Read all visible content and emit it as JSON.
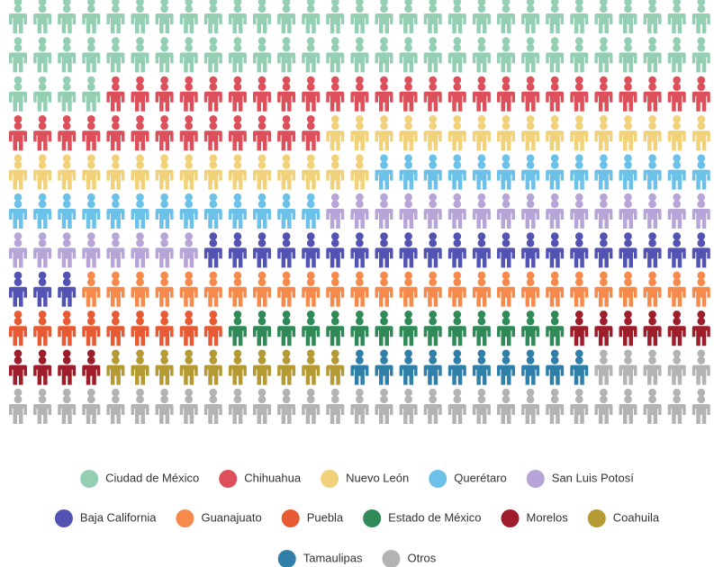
{
  "chart_data": {
    "type": "pictogram",
    "series": [
      {
        "name": "Ciudad de México",
        "color": "#94cfb3",
        "values": [
          62
        ]
      },
      {
        "name": "Chihuahua",
        "color": "#dd4f5a",
        "values": [
          38
        ]
      },
      {
        "name": "Nuevo León",
        "color": "#f1d27a",
        "values": [
          31
        ]
      },
      {
        "name": "Querétaro",
        "color": "#6cc1e8",
        "values": [
          27
        ]
      },
      {
        "name": "San Luis Potosí",
        "color": "#b7a5d8",
        "values": [
          24
        ]
      },
      {
        "name": "Baja California",
        "color": "#5353b3",
        "values": [
          24
        ]
      },
      {
        "name": "Guanajuato",
        "color": "#f58a4c",
        "values": [
          26
        ]
      },
      {
        "name": "Puebla",
        "color": "#e85a34",
        "values": [
          9
        ]
      },
      {
        "name": "Estado de México",
        "color": "#2f8a57",
        "values": [
          14
        ]
      },
      {
        "name": "Morelos",
        "color": "#9e1d2a",
        "values": [
          10
        ]
      },
      {
        "name": "Coahuila",
        "color": "#b59a33",
        "values": [
          10
        ]
      },
      {
        "name": "Tamaulipas",
        "color": "#2f7fa8",
        "values": [
          10
        ]
      },
      {
        "name": "Otros",
        "color": "#b3b3b3",
        "values": [
          34
        ]
      }
    ]
  }
}
